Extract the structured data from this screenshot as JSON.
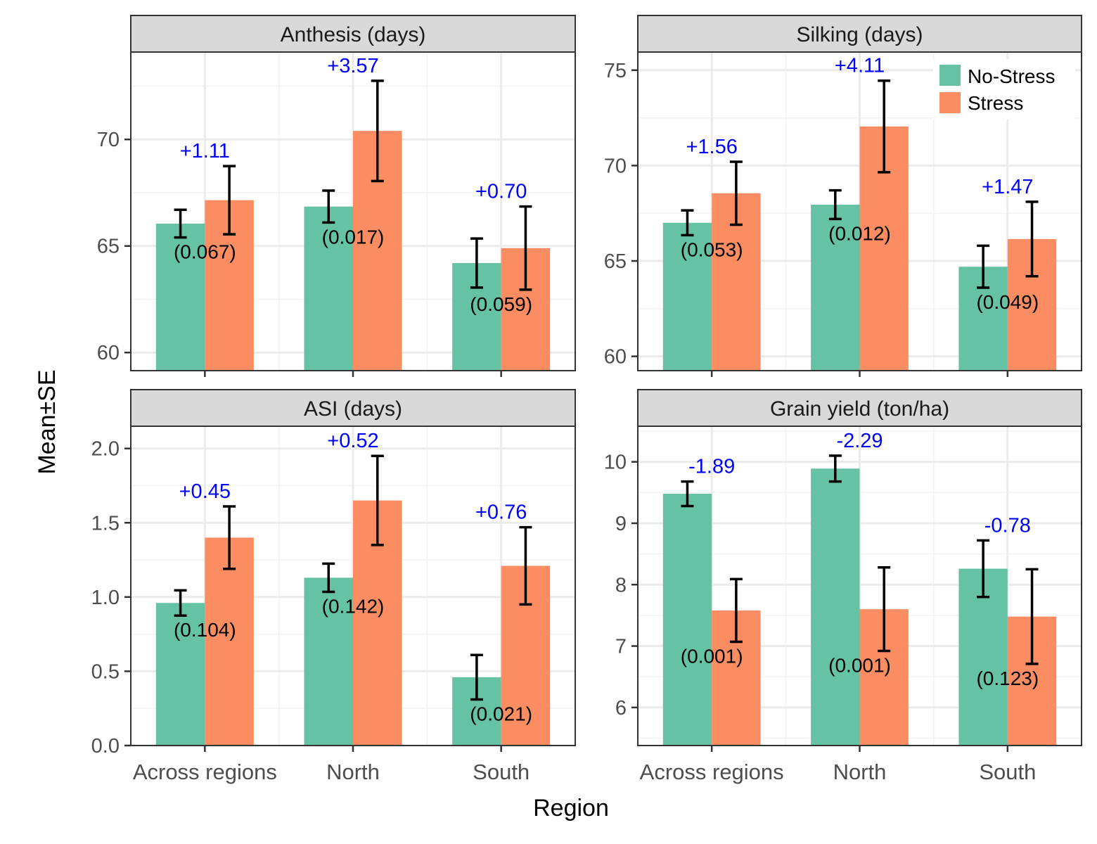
{
  "x_axis_label": "Region",
  "y_axis_label": "Mean±SE",
  "legend": {
    "position": "top-right of Silking panel",
    "items": [
      {
        "label": "No-Stress",
        "color": "#66c2a5"
      },
      {
        "label": "Stress",
        "color": "#fc8d62"
      }
    ]
  },
  "colors": {
    "no_stress": "#66c2a5",
    "stress": "#fc8d62",
    "difference_label": "#0000ff",
    "strip_background": "#d9d9d9",
    "grid": "#ebebeb"
  },
  "chart_data": [
    {
      "type": "bar",
      "title": "Anthesis (days)",
      "categories": [
        "Across regions",
        "North",
        "South"
      ],
      "series": [
        {
          "name": "No-Stress",
          "values": [
            66.05,
            66.85,
            64.2
          ],
          "se": [
            0.65,
            0.75,
            1.15
          ]
        },
        {
          "name": "Stress",
          "values": [
            67.15,
            70.4,
            64.9
          ],
          "se": [
            1.6,
            2.35,
            1.95
          ]
        }
      ],
      "differences": [
        "+1.11",
        "+3.57",
        "+0.70"
      ],
      "p_values": [
        "(0.067)",
        "(0.017)",
        "(0.059)"
      ],
      "ylim": [
        59.15,
        74.1
      ],
      "yticks": [
        60,
        65,
        70
      ],
      "ytick_labels": [
        "60",
        "65",
        "70"
      ],
      "grid": true
    },
    {
      "type": "bar",
      "title": "Silking (days)",
      "categories": [
        "Across regions",
        "North",
        "South"
      ],
      "series": [
        {
          "name": "No-Stress",
          "values": [
            67.0,
            67.95,
            64.7
          ],
          "se": [
            0.65,
            0.75,
            1.1
          ]
        },
        {
          "name": "Stress",
          "values": [
            68.55,
            72.05,
            66.15
          ],
          "se": [
            1.65,
            2.4,
            1.95
          ]
        }
      ],
      "differences": [
        "+1.56",
        "+4.11",
        "+1.47"
      ],
      "p_values": [
        "(0.053)",
        "(0.012)",
        "(0.049)"
      ],
      "ylim": [
        59.25,
        75.95
      ],
      "yticks": [
        60,
        65,
        70,
        75
      ],
      "ytick_labels": [
        "60",
        "65",
        "70",
        "75"
      ],
      "grid": true
    },
    {
      "type": "bar",
      "title": "ASI (days)",
      "categories": [
        "Across regions",
        "North",
        "South"
      ],
      "series": [
        {
          "name": "No-Stress",
          "values": [
            0.96,
            1.13,
            0.46
          ],
          "se": [
            0.085,
            0.095,
            0.15
          ]
        },
        {
          "name": "Stress",
          "values": [
            1.4,
            1.65,
            1.21
          ],
          "se": [
            0.21,
            0.3,
            0.26
          ]
        }
      ],
      "differences": [
        "+0.45",
        "+0.52",
        "+0.76"
      ],
      "p_values": [
        "(0.104)",
        "(0.142)",
        "(0.021)"
      ],
      "ylim": [
        0,
        2.15
      ],
      "yticks": [
        0,
        0.5,
        1,
        1.5,
        2
      ],
      "ytick_labels": [
        "0.0",
        "0.5",
        "1.0",
        "1.5",
        "2.0"
      ],
      "grid": true
    },
    {
      "type": "bar",
      "title": "Grain yield (ton/ha)",
      "categories": [
        "Across regions",
        "North",
        "South"
      ],
      "series": [
        {
          "name": "No-Stress",
          "values": [
            9.48,
            9.89,
            8.26
          ],
          "se": [
            0.2,
            0.21,
            0.46
          ]
        },
        {
          "name": "Stress",
          "values": [
            7.58,
            7.6,
            7.48
          ],
          "se": [
            0.51,
            0.68,
            0.77
          ]
        }
      ],
      "differences": [
        "-1.89",
        "-2.29",
        "-0.78"
      ],
      "p_values": [
        "(0.001)",
        "(0.001)",
        "(0.123)"
      ],
      "ylim": [
        5.38,
        10.58
      ],
      "yticks": [
        6,
        7,
        8,
        9,
        10
      ],
      "ytick_labels": [
        "6",
        "7",
        "8",
        "9",
        "10"
      ],
      "grid": true
    }
  ]
}
